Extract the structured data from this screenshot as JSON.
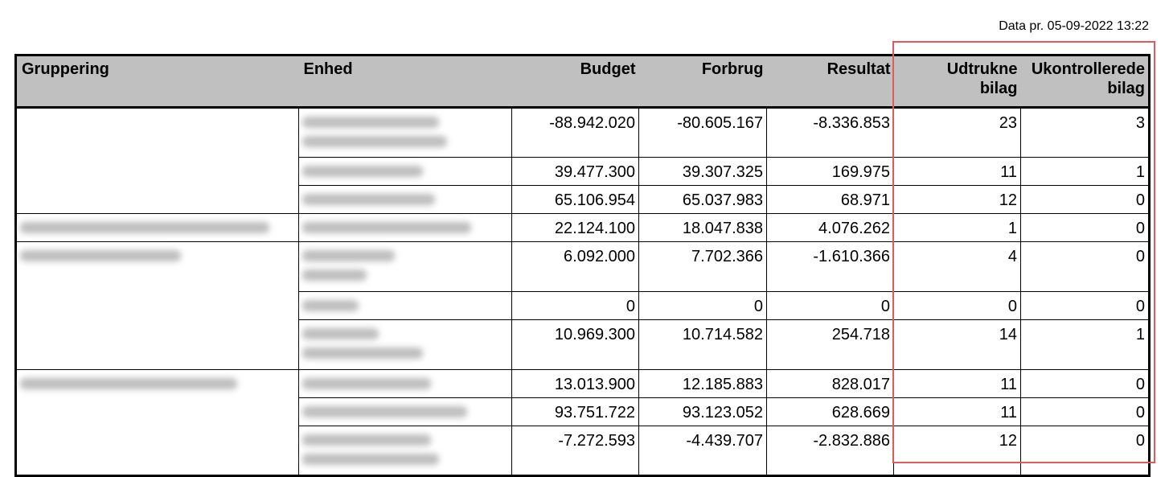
{
  "header": {
    "timestamp": "Data pr. 05-09-2022 13:22"
  },
  "table": {
    "columns": [
      "Gruppering",
      "Enhed",
      "Budget",
      "Forbrug",
      "Resultat",
      "Udtrukne\nbilag",
      "Ukontrollerede\nbilag"
    ],
    "groups": [
      {
        "rows": [
          [
            "-88.942.020",
            "-80.605.167",
            "-8.336.853",
            "23",
            "3"
          ],
          [
            "39.477.300",
            "39.307.325",
            "169.975",
            "11",
            "1"
          ],
          [
            "65.106.954",
            "65.037.983",
            "68.971",
            "12",
            "0"
          ]
        ]
      },
      {
        "rows": [
          [
            "22.124.100",
            "18.047.838",
            "4.076.262",
            "1",
            "0"
          ]
        ]
      },
      {
        "rows": [
          [
            "6.092.000",
            "7.702.366",
            "-1.610.366",
            "4",
            "0"
          ],
          [
            "0",
            "0",
            "0",
            "0",
            "0"
          ],
          [
            "10.969.300",
            "10.714.582",
            "254.718",
            "14",
            "1"
          ]
        ]
      },
      {
        "rows": [
          [
            "13.013.900",
            "12.185.883",
            "828.017",
            "11",
            "0"
          ],
          [
            "93.751.722",
            "93.123.052",
            "628.669",
            "11",
            "0"
          ],
          [
            "-7.272.593",
            "-4.439.707",
            "-2.832.886",
            "12",
            "0"
          ]
        ]
      }
    ]
  }
}
